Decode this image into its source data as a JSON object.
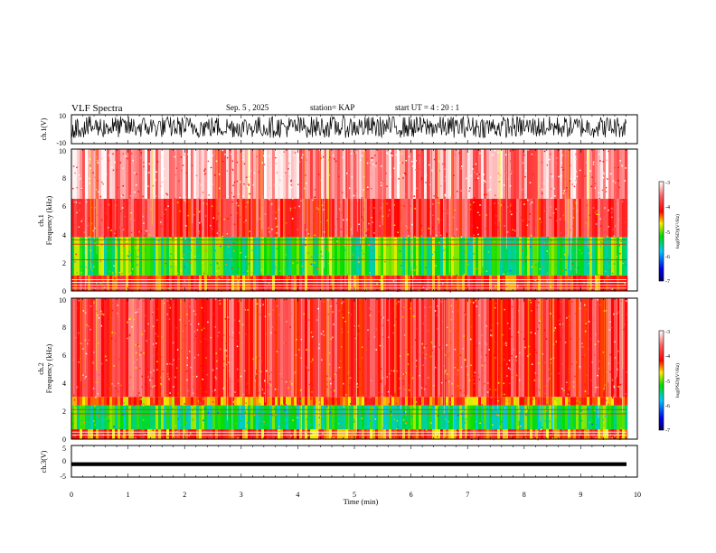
{
  "header": {
    "title": "VLF Spectra",
    "date": "Sep. 5 , 2025",
    "station": "station= KAP",
    "start": "start  UT =   4 : 20 : 1"
  },
  "colors": {
    "low": "#0000aa",
    "mid_low": "#00c8ff",
    "mid": "#00dd00",
    "mid_high": "#ffee00",
    "high": "#ff0000",
    "top": "#ffffff",
    "trace": "#000000"
  },
  "chart_data": [
    {
      "type": "line",
      "title": "VLF Spectra",
      "ylabel": "ch.1(V)",
      "ylim": [
        -10,
        10
      ],
      "ytick_labels": [
        "10",
        "-10"
      ],
      "xlim": [
        0,
        10
      ],
      "description_values": {
        "mean_v": 0,
        "noise_band_v": [
          -6,
          9
        ]
      }
    },
    {
      "type": "heatmap",
      "ylabel_channel": "ch.1",
      "ylabel": "Frequency  (kHz)",
      "ylim": [
        0,
        10
      ],
      "xlim": [
        0,
        9.83
      ],
      "ytick_labels": [
        "0",
        "2",
        "4",
        "6",
        "8",
        "10"
      ],
      "colorbar": {
        "label": "log(PSD)(V²/Hz)",
        "range": [
          -7,
          -3
        ],
        "tick_labels": [
          "-3",
          "-4",
          "-5",
          "-6",
          "-7"
        ]
      },
      "bands_khz": [
        {
          "from": 0,
          "to": 1.1,
          "level": -4.2
        },
        {
          "from": 1.1,
          "to": 3.8,
          "level": -5.2
        },
        {
          "from": 3.8,
          "to": 6.5,
          "level": -3.9
        },
        {
          "from": 6.5,
          "to": 10,
          "level": -3.4
        }
      ],
      "lines_khz": [
        2.2,
        3.3,
        3.6,
        0.2,
        0.4,
        0.6,
        0.8
      ]
    },
    {
      "type": "heatmap",
      "ylabel_channel": "ch.2",
      "ylabel": "Frequency  (kHz)",
      "ylim": [
        0,
        10
      ],
      "xlim": [
        0,
        9.83
      ],
      "ytick_labels": [
        "0",
        "2",
        "4",
        "6",
        "8",
        "10"
      ],
      "colorbar": {
        "label": "log(PSD)(V²/Hz)",
        "range": [
          -7,
          -3
        ],
        "tick_labels": [
          "-3",
          "-4",
          "-5",
          "-6",
          "-7"
        ]
      },
      "bands_khz": [
        {
          "from": 0,
          "to": 0.7,
          "level": -4.3
        },
        {
          "from": 0.7,
          "to": 2.4,
          "level": -5.3
        },
        {
          "from": 2.4,
          "to": 3.0,
          "level": -4.4
        },
        {
          "from": 3.0,
          "to": 10,
          "level": -3.9
        }
      ],
      "lines_khz": [
        1.8,
        2.1,
        0.3,
        0.5
      ]
    },
    {
      "type": "line",
      "ylabel": "ch.3(V)",
      "ylim": [
        -5,
        5
      ],
      "ytick_labels": [
        "5",
        "0",
        "-5"
      ],
      "xlim": [
        0,
        10
      ],
      "description_values": {
        "band_v": [
          -1.5,
          -0.3
        ]
      },
      "xlabel": "Time  (min)",
      "xtick_labels": [
        "0",
        "1",
        "2",
        "3",
        "4",
        "5",
        "6",
        "7",
        "8",
        "9",
        "10"
      ]
    }
  ]
}
